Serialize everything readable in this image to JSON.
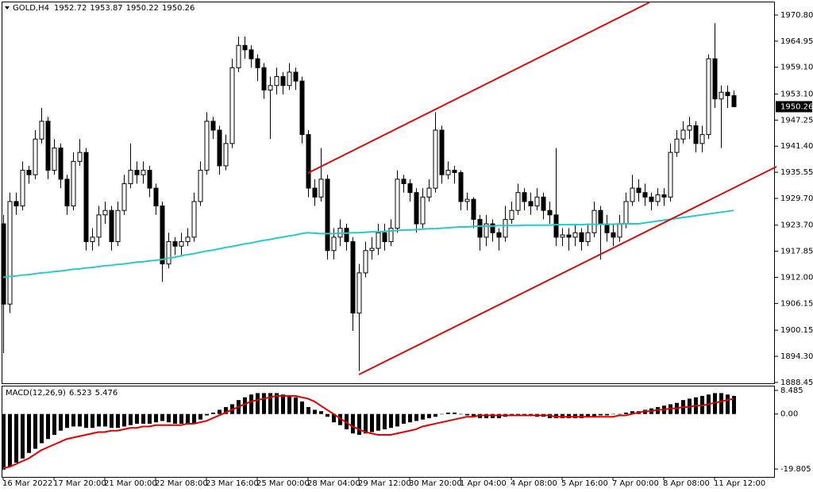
{
  "chart_data": [
    {
      "type": "candlestick",
      "title": "GOLD,H4",
      "header_values": [
        1952.72,
        1953.87,
        1950.22,
        1950.26
      ],
      "current_price": 1950.26,
      "categories": [
        "16 Mar 2022",
        null,
        null,
        null,
        null,
        null,
        null,
        null,
        "17 Mar 20:00",
        null,
        null,
        null,
        null,
        null,
        null,
        null,
        "21 Mar 00:00",
        null,
        null,
        null,
        null,
        null,
        null,
        null,
        "22 Mar 08:00",
        null,
        null,
        null,
        null,
        null,
        null,
        null,
        "23 Mar 16:00",
        null,
        null,
        null,
        null,
        null,
        null,
        null,
        "25 Mar 00:00",
        null,
        null,
        null,
        null,
        null,
        null,
        null,
        "28 Mar 04:00",
        null,
        null,
        null,
        null,
        null,
        null,
        null,
        "29 Mar 12:00",
        null,
        null,
        null,
        null,
        null,
        null,
        null,
        "30 Mar 20:00",
        null,
        null,
        null,
        null,
        null,
        null,
        null,
        "1 Apr 04:00",
        null,
        null,
        null,
        null,
        null,
        null,
        null,
        "4 Apr 08:00",
        null,
        null,
        null,
        null,
        null,
        null,
        null,
        "5 Apr 16:00",
        null,
        null,
        null,
        null,
        null,
        null,
        null,
        "7 Apr 00:00",
        null,
        null,
        null,
        null,
        null,
        null,
        null,
        "8 Apr 08:00",
        null,
        null,
        null,
        null,
        null,
        null,
        null,
        "11 Apr 12:00",
        null,
        null,
        null
      ],
      "open": [
        1924,
        1906,
        1929,
        1928,
        1936,
        1935,
        1943,
        1947,
        1936,
        1941,
        1934,
        1928,
        1938,
        1940,
        1920,
        1921,
        1926,
        1927,
        1920,
        1927,
        1933,
        1936,
        1935,
        1936,
        1932,
        1928,
        1915,
        1920,
        1919,
        1920,
        1921,
        1929,
        1936,
        1947,
        1945,
        1937,
        1942,
        1959,
        1964,
        1963,
        1961,
        1959,
        1954,
        1955,
        1957,
        1955,
        1958,
        1956,
        1944,
        1932,
        1930,
        1934,
        1918,
        1921,
        1923,
        1920,
        1904,
        1913,
        1918,
        1918.5,
        1922,
        1920,
        1923,
        1934,
        1933,
        1931,
        1924,
        1930,
        1932,
        1945,
        1935,
        1936,
        1935.5,
        1929,
        1929.5,
        1925,
        1921,
        1924,
        1922,
        1921,
        1925,
        1927,
        1931,
        1929,
        1928,
        1930,
        1927,
        1926,
        1921,
        1921.5,
        1921,
        1922,
        1920,
        1922,
        1927,
        1924,
        1922,
        1921,
        1924,
        1929,
        1932,
        1931,
        1930,
        1929,
        1930.5,
        1930,
        1940,
        1943,
        1945,
        1946,
        1942,
        1944,
        1961,
        1952,
        1953.5,
        1952.72
      ],
      "high": [
        1926,
        1931,
        1931,
        1938,
        1937,
        1945,
        1950,
        1948,
        1943,
        1942,
        1935,
        1940,
        1943,
        1941,
        1923,
        1928,
        1929,
        1928,
        1929,
        1935,
        1942,
        1938,
        1938,
        1937,
        1933,
        1929,
        1922,
        1921,
        1922,
        1923,
        1931,
        1938,
        1949,
        1948,
        1946,
        1944,
        1961,
        1966,
        1966,
        1964,
        1962,
        1960,
        1957,
        1959,
        1958,
        1960,
        1959,
        1957,
        1945,
        1934,
        1941,
        1935,
        1923,
        1925,
        1924,
        1921,
        1915,
        1920,
        1921,
        1924,
        1924,
        1925,
        1936,
        1935,
        1934,
        1932,
        1932,
        1934,
        1949,
        1946,
        1938,
        1937,
        1936,
        1931,
        1930,
        1926,
        1926,
        1925,
        1923,
        1928,
        1929,
        1933,
        1932,
        1931,
        1932,
        1931,
        1929,
        1941,
        1923,
        1923,
        1924,
        1923,
        1924,
        1929,
        1928,
        1926,
        1924,
        1926,
        1931,
        1935,
        1934,
        1933,
        1931,
        1932,
        1932,
        1942,
        1945,
        1947,
        1948,
        1947,
        1946,
        1962,
        1969,
        1955,
        1955,
        1953.87
      ],
      "low": [
        1895,
        1904,
        1926,
        1927,
        1933,
        1934,
        1942,
        1934,
        1935,
        1932,
        1926,
        1927,
        1937,
        1918,
        1918,
        1919,
        1924,
        1918,
        1919,
        1926,
        1932,
        1933,
        1933,
        1930,
        1926,
        1911,
        1914,
        1917,
        1917,
        1919,
        1920,
        1928,
        1935,
        1943,
        1935,
        1936,
        1941,
        1958,
        1961,
        1959,
        1956,
        1952,
        1943,
        1953,
        1953,
        1954,
        1954,
        1942,
        1930,
        1928,
        1929,
        1916,
        1916,
        1919,
        1918,
        1900,
        1891,
        1912,
        1916,
        1917,
        1918,
        1919,
        1922,
        1931,
        1929,
        1922,
        1923,
        1929,
        1931,
        1933,
        1934,
        1933,
        1927,
        1927,
        1923,
        1918,
        1919,
        1920,
        1918,
        1920,
        1924,
        1926,
        1927,
        1926,
        1927,
        1925,
        1924,
        1919,
        1919,
        1918,
        1919,
        1918,
        1919,
        1921,
        1916,
        1920,
        1919,
        1920,
        1923,
        1928,
        1929,
        1928,
        1927,
        1928,
        1928,
        1929,
        1939,
        1942,
        1943,
        1940,
        1940,
        1943,
        1950,
        1941,
        1950,
        1950.22
      ],
      "close": [
        1906,
        1929,
        1928,
        1936,
        1935,
        1943,
        1947,
        1936,
        1941,
        1934,
        1928,
        1938,
        1940,
        1920,
        1921,
        1926,
        1927,
        1920,
        1927,
        1933,
        1936,
        1935,
        1936,
        1932,
        1928,
        1915,
        1920,
        1919,
        1920,
        1921,
        1929,
        1936,
        1947,
        1945,
        1937,
        1942,
        1959,
        1964,
        1963,
        1961,
        1959,
        1954,
        1955,
        1957,
        1955,
        1958,
        1956,
        1944,
        1932,
        1930,
        1934,
        1918,
        1921,
        1923,
        1920,
        1904,
        1913,
        1918,
        1918.5,
        1922,
        1920,
        1923,
        1934,
        1933,
        1931,
        1924,
        1930,
        1932,
        1945,
        1935,
        1936,
        1935.5,
        1929,
        1929.5,
        1925,
        1921,
        1924,
        1922,
        1921,
        1925,
        1927,
        1931,
        1929,
        1928,
        1930,
        1927,
        1926,
        1921,
        1921.5,
        1921,
        1922,
        1920,
        1922,
        1927,
        1924,
        1922,
        1921,
        1924,
        1929,
        1932,
        1931,
        1930,
        1929,
        1930.5,
        1930,
        1940,
        1943,
        1945,
        1946,
        1942,
        1944,
        1961,
        1952,
        1953.5,
        1952.72,
        1950.26
      ],
      "up_color": "#ffffff",
      "down_color": "#000000",
      "ma": {
        "color": "#2cc8c8",
        "values": [
          1912,
          1912.2,
          1912.3,
          1912.5,
          1912.6,
          1912.8,
          1913,
          1913.1,
          1913.3,
          1913.4,
          1913.6,
          1913.8,
          1913.9,
          1914.1,
          1914.2,
          1914.4,
          1914.6,
          1914.7,
          1914.9,
          1915,
          1915.2,
          1915.4,
          1915.5,
          1915.7,
          1915.8,
          1916,
          1916.3,
          1916.5,
          1916.8,
          1917.1,
          1917.3,
          1917.6,
          1917.9,
          1918.1,
          1918.4,
          1918.7,
          1918.9,
          1919.2,
          1919.5,
          1919.7,
          1920,
          1920.3,
          1920.5,
          1920.8,
          1921,
          1921.3,
          1921.5,
          1921.8,
          1922,
          1921.9,
          1921.8,
          1921.8,
          1921.8,
          1921.9,
          1921.9,
          1922,
          1922,
          1922.1,
          1922.2,
          1922.2,
          1922.3,
          1922.4,
          1922.5,
          1922.6,
          1922.6,
          1922.7,
          1922.8,
          1922.9,
          1922.9,
          1923,
          1923.1,
          1923.2,
          1923.3,
          1923.3,
          1923.4,
          1923.5,
          1923.5,
          1923.5,
          1923.6,
          1923.6,
          1923.6,
          1923.6,
          1923.7,
          1923.7,
          1923.7,
          1923.7,
          1923.7,
          1923.8,
          1923.8,
          1923.8,
          1923.8,
          1923.8,
          1923.9,
          1923.9,
          1923.9,
          1923.9,
          1923.9,
          1924,
          1924,
          1924,
          1924,
          1924.2,
          1924.4,
          1924.6,
          1924.8,
          1925,
          1925.2,
          1925.4,
          1925.6,
          1925.8,
          1926,
          1926.2,
          1926.4,
          1926.6,
          1926.8,
          1927
        ]
      },
      "ylim": [
        1888.25,
        1973.82
      ],
      "yticks": [
        {
          "value": 1970.8,
          "label": "1970.80"
        },
        1964.95,
        {
          "value": 1959.1,
          "label": "1959.10"
        },
        {
          "value": 1953.1,
          "label": "1953.10"
        },
        1947.25,
        {
          "value": 1941.4,
          "label": "1941.40"
        },
        1935.55,
        {
          "value": 1929.7,
          "label": "1929.70"
        },
        {
          "value": 1923.7,
          "label": "1923.70"
        },
        1917.85,
        {
          "value": 1912,
          "label": "1912.00"
        },
        1906.15,
        1900.15,
        {
          "value": 1894.3,
          "label": "1894.30"
        },
        1888.45
      ]
    },
    {
      "type": "macd",
      "title": "MACD(12,26,9)",
      "header_values": [
        6.523,
        5.476
      ],
      "histogram": {
        "color": "#000000",
        "values": [
          -20,
          -19,
          -17.5,
          -16,
          -14,
          -12.5,
          -10.5,
          -9,
          -7.5,
          -6,
          -5,
          -4.5,
          -4.5,
          -5,
          -5,
          -4.5,
          -4.5,
          -5,
          -5,
          -4.5,
          -4,
          -3.5,
          -3.5,
          -3.5,
          -3,
          -2.5,
          -3,
          -3.5,
          -3.5,
          -3.5,
          -3.5,
          -2,
          -0.5,
          0.5,
          1.5,
          2.5,
          3.5,
          5,
          6,
          7,
          7.5,
          7.5,
          7.5,
          7.5,
          7,
          6.5,
          6,
          4.5,
          2.5,
          1.5,
          1,
          -1,
          -3,
          -4,
          -5.5,
          -7,
          -7.5,
          -7,
          -6.5,
          -6,
          -5.5,
          -5,
          -4.5,
          -3.5,
          -3,
          -2.5,
          -2,
          -1.5,
          -1,
          0,
          0.5,
          0.5,
          0,
          -0.5,
          -1,
          -1.5,
          -1.5,
          -1.5,
          -1.5,
          -1,
          -0.5,
          -0.5,
          -0.5,
          -0.5,
          -1,
          -1,
          -1.5,
          -1.5,
          -1.5,
          -1.5,
          -1.5,
          -1.5,
          -1,
          -1,
          -0.5,
          -0.5,
          0,
          0,
          0.5,
          1,
          1,
          1.5,
          2,
          2.5,
          3,
          3.5,
          4,
          5,
          5.5,
          6,
          6.5,
          7,
          7.5,
          7.5,
          7,
          6.523
        ]
      },
      "signal": {
        "color": "#e00000",
        "values": [
          -19.5,
          -19,
          -18,
          -17,
          -16,
          -14.5,
          -13,
          -12,
          -11,
          -10,
          -9,
          -8.5,
          -8,
          -7.5,
          -7,
          -6.5,
          -6.5,
          -6,
          -6,
          -5.5,
          -5,
          -5,
          -4.5,
          -4.5,
          -4,
          -4,
          -4,
          -4,
          -4,
          -3.5,
          -3.5,
          -3,
          -2.5,
          -1.5,
          -0.5,
          0.5,
          1.5,
          2.5,
          3.5,
          4.5,
          5,
          5.5,
          6,
          6.5,
          6.5,
          6.5,
          6.5,
          6,
          5.5,
          4.5,
          3,
          1.5,
          0,
          -1.5,
          -3,
          -4.5,
          -5.5,
          -6.5,
          -7,
          -7.5,
          -7.5,
          -7.5,
          -7,
          -6.5,
          -6,
          -5.5,
          -4.5,
          -4,
          -3.5,
          -3,
          -2.5,
          -2,
          -1.5,
          -1,
          -1,
          -0.5,
          -0.5,
          -0.5,
          -0.5,
          -0.5,
          -0.5,
          -0.5,
          -0.5,
          -0.5,
          -0.5,
          -0.5,
          -0.5,
          -1,
          -1,
          -1,
          -1,
          -1,
          -1,
          -1,
          -1,
          -1,
          -1,
          -0.5,
          -0.5,
          0,
          0.5,
          1,
          1,
          1.5,
          1.5,
          2,
          2,
          2.5,
          2.5,
          3,
          3,
          3.5,
          4,
          4.5,
          5,
          5.476
        ]
      },
      "ylim": [
        -22.63,
        9.9
      ],
      "yticks": [
        8.485,
        {
          "value": 0,
          "label": "0.00"
        },
        -19.805
      ]
    }
  ]
}
